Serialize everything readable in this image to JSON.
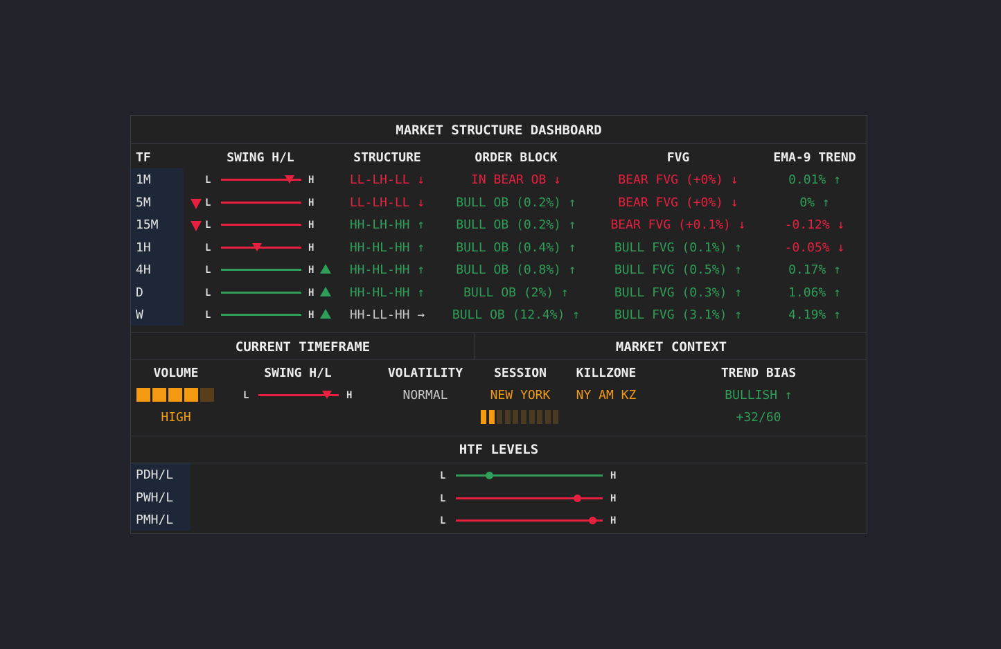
{
  "title": "MARKET STRUCTURE DASHBOARD",
  "columns": [
    "TF",
    "SWING H/L",
    "STRUCTURE",
    "ORDER BLOCK",
    "FVG",
    "EMA-9 TREND"
  ],
  "swing_low_label": "L",
  "swing_high_label": "H",
  "rows": [
    {
      "tf": "1M",
      "swing_color": "red",
      "swing_marker": 0.85,
      "left_arrow": false,
      "right_arrow": false,
      "structure": "LL-LH-LL ↓",
      "structure_color": "red",
      "ob": "IN BEAR OB ↓",
      "ob_color": "red",
      "fvg": "BEAR FVG (+0%) ↓",
      "fvg_color": "red",
      "ema": "0.01% ↑",
      "ema_color": "green"
    },
    {
      "tf": "5M",
      "swing_color": "red",
      "swing_marker": null,
      "left_arrow": true,
      "right_arrow": false,
      "structure": "LL-LH-LL ↓",
      "structure_color": "red",
      "ob": "BULL OB (0.2%) ↑",
      "ob_color": "green",
      "fvg": "BEAR FVG (+0%) ↓",
      "fvg_color": "red",
      "ema": "0% ↑",
      "ema_color": "green"
    },
    {
      "tf": "15M",
      "swing_color": "red",
      "swing_marker": null,
      "left_arrow": true,
      "right_arrow": false,
      "structure": "HH-LH-HH ↑",
      "structure_color": "green",
      "ob": "BULL OB (0.2%) ↑",
      "ob_color": "green",
      "fvg": "BEAR FVG (+0.1%) ↓",
      "fvg_color": "red",
      "ema": "-0.12% ↓",
      "ema_color": "red"
    },
    {
      "tf": "1H",
      "swing_color": "red",
      "swing_marker": 0.45,
      "left_arrow": false,
      "right_arrow": false,
      "structure": "HH-HL-HH ↑",
      "structure_color": "green",
      "ob": "BULL OB (0.4%) ↑",
      "ob_color": "green",
      "fvg": "BULL FVG (0.1%) ↑",
      "fvg_color": "green",
      "ema": "-0.05% ↓",
      "ema_color": "red"
    },
    {
      "tf": "4H",
      "swing_color": "green",
      "swing_marker": null,
      "left_arrow": false,
      "right_arrow": true,
      "structure": "HH-HL-HH ↑",
      "structure_color": "green",
      "ob": "BULL OB (0.8%) ↑",
      "ob_color": "green",
      "fvg": "BULL FVG (0.5%) ↑",
      "fvg_color": "green",
      "ema": "0.17% ↑",
      "ema_color": "green"
    },
    {
      "tf": "D",
      "swing_color": "green",
      "swing_marker": null,
      "left_arrow": false,
      "right_arrow": true,
      "structure": "HH-HL-HH ↑",
      "structure_color": "green",
      "ob": "BULL OB (2%) ↑",
      "ob_color": "green",
      "fvg": "BULL FVG (0.3%) ↑",
      "fvg_color": "green",
      "ema": "1.06% ↑",
      "ema_color": "green"
    },
    {
      "tf": "W",
      "swing_color": "green",
      "swing_marker": null,
      "left_arrow": false,
      "right_arrow": true,
      "structure": "HH-LL-HH →",
      "structure_color": "gray",
      "ob": "BULL OB (12.4%) ↑",
      "ob_color": "green",
      "fvg": "BULL FVG (3.1%) ↑",
      "fvg_color": "green",
      "ema": "4.19% ↑",
      "ema_color": "green"
    }
  ],
  "current": {
    "title": "CURRENT TIMEFRAME",
    "volume_label": "VOLUME",
    "swing_label": "SWING H/L",
    "volatility_label": "VOLATILITY",
    "volume_level": 4,
    "volume_max": 5,
    "volume_text": "HIGH",
    "swing_marker": 0.85,
    "volatility": "NORMAL"
  },
  "context": {
    "title": "MARKET CONTEXT",
    "session_label": "SESSION",
    "killzone_label": "KILLZONE",
    "bias_label": "TREND BIAS",
    "session": "NEW YORK",
    "killzone": "NY AM KZ",
    "killzone_progress": 2,
    "killzone_max": 10,
    "bias": "BULLISH ↑",
    "bias_score": "+32/60"
  },
  "htf": {
    "title": "HTF LEVELS",
    "levels": [
      {
        "label": "PDH/L",
        "position": 0.23,
        "color": "green"
      },
      {
        "label": "PWH/L",
        "position": 0.83,
        "color": "red"
      },
      {
        "label": "PMH/L",
        "position": 0.93,
        "color": "red"
      }
    ]
  },
  "colors": {
    "red": "#e8203f",
    "green": "#2f9e58",
    "gray": "#c7c7c7",
    "orange": "#f39a12",
    "dim_orange": "#5a3d1a"
  }
}
